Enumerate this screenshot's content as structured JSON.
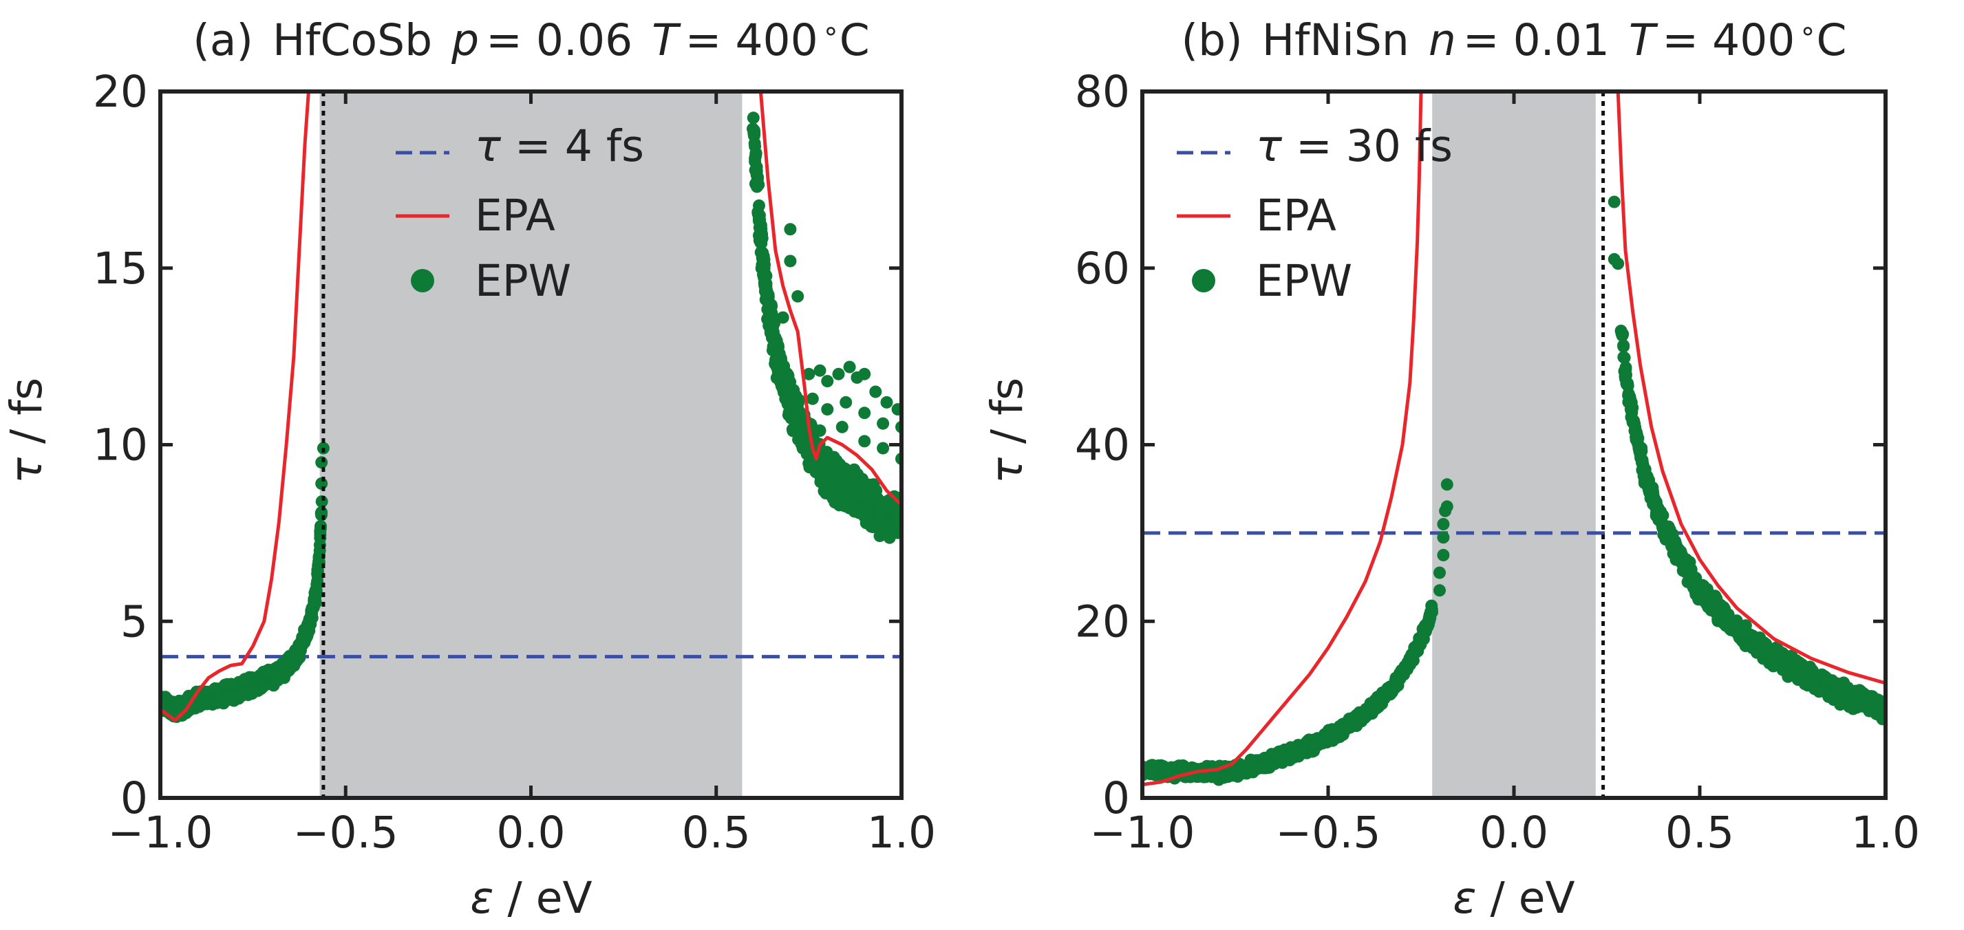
{
  "chart_data": [
    {
      "type": "scatter",
      "title_parts": [
        "(a)",
        "HfCoSb",
        "p",
        "= 0.06",
        "T",
        "= 400",
        "∘",
        "C"
      ],
      "xlabel": {
        "symbol": "ε",
        "unit": " / eV"
      },
      "ylabel": {
        "symbol": "τ",
        "unit": " / fs"
      },
      "xlim": [
        -1.0,
        1.0
      ],
      "ylim": [
        0,
        20
      ],
      "xticks": [
        -1.0,
        -0.5,
        0.0,
        0.5,
        1.0
      ],
      "xtick_labels": [
        "−1.0",
        "−0.5",
        "0.0",
        "0.5",
        "1.0"
      ],
      "yticks": [
        0,
        5,
        10,
        15,
        20
      ],
      "ytick_labels": [
        "0",
        "5",
        "10",
        "15",
        "20"
      ],
      "band_gap": [
        -0.57,
        0.57
      ],
      "fermi_level": -0.56,
      "legend": [
        {
          "kind": "dash",
          "symbol": "τ",
          "text": " = 4 fs",
          "color": "#3a4ea3"
        },
        {
          "kind": "line",
          "text": "EPA",
          "color": "#e8262b"
        },
        {
          "kind": "dot",
          "text": "EPW",
          "color": "#0d7a36"
        }
      ],
      "series": [
        {
          "name": "τ = 4 fs",
          "style": "dashed",
          "color": "#3a4ea3",
          "x": [
            -1.0,
            1.0
          ],
          "y": [
            4,
            4
          ]
        },
        {
          "name": "EPA",
          "style": "line",
          "color": "#e8262b",
          "segments": [
            {
              "x": [
                -1.0,
                -0.96,
                -0.93,
                -0.9,
                -0.87,
                -0.84,
                -0.81,
                -0.78,
                -0.75,
                -0.72,
                -0.7,
                -0.68,
                -0.66,
                -0.64,
                -0.63,
                -0.62,
                -0.61,
                -0.6,
                -0.595
              ],
              "y": [
                2.5,
                2.2,
                2.5,
                3.0,
                3.4,
                3.6,
                3.75,
                3.8,
                4.3,
                5.0,
                6.2,
                7.8,
                10.0,
                12.5,
                14.5,
                16.5,
                18.5,
                20.0,
                20.0
              ]
            },
            {
              "x": [
                0.62,
                0.64,
                0.66,
                0.68,
                0.7,
                0.72,
                0.74,
                0.75,
                0.76,
                0.77,
                0.78,
                0.8,
                0.84,
                0.88,
                0.92,
                0.96,
                1.0
              ],
              "y": [
                20.0,
                17.5,
                15.5,
                14.5,
                13.8,
                13.2,
                11.5,
                10.5,
                9.9,
                9.6,
                10.0,
                10.2,
                10.0,
                9.7,
                9.3,
                8.7,
                8.3
              ]
            }
          ]
        },
        {
          "name": "EPW",
          "style": "scatter",
          "color": "#0d7a36",
          "branches": [
            {
              "x_from": -1.0,
              "x_to": -0.565,
              "y_pts": [
                [
                  -1.0,
                  2.7
                ],
                [
                  -0.95,
                  2.5
                ],
                [
                  -0.9,
                  2.8
                ],
                [
                  -0.85,
                  2.9
                ],
                [
                  -0.8,
                  3.0
                ],
                [
                  -0.75,
                  3.2
                ],
                [
                  -0.7,
                  3.4
                ],
                [
                  -0.66,
                  3.7
                ],
                [
                  -0.63,
                  4.1
                ],
                [
                  -0.6,
                  4.8
                ],
                [
                  -0.58,
                  5.8
                ],
                [
                  -0.57,
                  7.0
                ],
                [
                  -0.565,
                  8.3
                ]
              ],
              "spread": 0.2
            },
            {
              "x_from": 0.6,
              "x_to": 1.0,
              "y_pts": [
                [
                  0.6,
                  19.0
                ],
                [
                  0.61,
                  17.5
                ],
                [
                  0.62,
                  15.8
                ],
                [
                  0.64,
                  14.0
                ],
                [
                  0.66,
                  12.6
                ],
                [
                  0.7,
                  11.2
                ],
                [
                  0.75,
                  10.0
                ],
                [
                  0.8,
                  9.2
                ],
                [
                  0.85,
                  8.8
                ],
                [
                  0.9,
                  8.4
                ],
                [
                  0.95,
                  8.0
                ],
                [
                  1.0,
                  7.8
                ]
              ],
              "spread": 0.5
            }
          ],
          "extra_points": [
            [
              -0.56,
              9.9
            ],
            [
              -0.565,
              9.5
            ],
            [
              -0.565,
              8.9
            ],
            [
              0.7,
              16.1
            ],
            [
              0.7,
              15.2
            ],
            [
              0.72,
              14.2
            ],
            [
              0.68,
              13.6
            ],
            [
              0.75,
              12.0
            ],
            [
              0.78,
              12.1
            ],
            [
              0.8,
              11.8
            ],
            [
              0.83,
              12.0
            ],
            [
              0.86,
              12.2
            ],
            [
              0.88,
              11.9
            ],
            [
              0.9,
              12.0
            ],
            [
              0.93,
              11.5
            ],
            [
              0.96,
              11.2
            ],
            [
              0.99,
              11.0
            ],
            [
              0.76,
              11.3
            ],
            [
              0.8,
              11.0
            ],
            [
              0.85,
              11.2
            ],
            [
              0.9,
              10.9
            ],
            [
              0.95,
              10.6
            ],
            [
              1.0,
              10.5
            ],
            [
              0.78,
              10.4
            ],
            [
              0.84,
              10.5
            ],
            [
              0.9,
              10.1
            ],
            [
              0.95,
              9.9
            ],
            [
              1.0,
              9.6
            ]
          ]
        }
      ]
    },
    {
      "type": "scatter",
      "title_parts": [
        "(b)",
        "HfNiSn",
        "n",
        "= 0.01",
        "T",
        "= 400",
        "∘",
        "C"
      ],
      "xlabel": {
        "symbol": "ε",
        "unit": " / eV"
      },
      "ylabel": {
        "symbol": "τ",
        "unit": " / fs"
      },
      "xlim": [
        -1.0,
        1.0
      ],
      "ylim": [
        0,
        80
      ],
      "xticks": [
        -1.0,
        -0.5,
        0.0,
        0.5,
        1.0
      ],
      "xtick_labels": [
        "−1.0",
        "−0.5",
        "0.0",
        "0.5",
        "1.0"
      ],
      "yticks": [
        0,
        20,
        40,
        60,
        80
      ],
      "ytick_labels": [
        "0",
        "20",
        "40",
        "60",
        "80"
      ],
      "band_gap": [
        -0.22,
        0.22
      ],
      "fermi_level": 0.24,
      "legend": [
        {
          "kind": "dash",
          "symbol": "τ",
          "text": " = 30 fs",
          "color": "#3a4ea3"
        },
        {
          "kind": "line",
          "text": "EPA",
          "color": "#e8262b"
        },
        {
          "kind": "dot",
          "text": "EPW",
          "color": "#0d7a36"
        }
      ],
      "series": [
        {
          "name": "τ = 30 fs",
          "style": "dashed",
          "color": "#3a4ea3",
          "x": [
            -1.0,
            1.0
          ],
          "y": [
            30,
            30
          ]
        },
        {
          "name": "EPA",
          "style": "line",
          "color": "#e8262b",
          "segments": [
            {
              "x": [
                -1.0,
                -0.95,
                -0.9,
                -0.85,
                -0.8,
                -0.76,
                -0.72,
                -0.68,
                -0.64,
                -0.6,
                -0.55,
                -0.5,
                -0.45,
                -0.4,
                -0.36,
                -0.33,
                -0.3,
                -0.28,
                -0.27,
                -0.26,
                -0.255,
                -0.25
              ],
              "y": [
                1.5,
                1.8,
                2.5,
                3.0,
                3.2,
                3.8,
                5.5,
                7.5,
                9.5,
                11.5,
                14.0,
                17.0,
                20.5,
                24.5,
                29.0,
                34.0,
                40.0,
                47.0,
                54.0,
                63.0,
                70.0,
                80.0
              ]
            },
            {
              "x": [
                0.28,
                0.29,
                0.3,
                0.32,
                0.34,
                0.37,
                0.4,
                0.45,
                0.5,
                0.55,
                0.6,
                0.7,
                0.8,
                0.9,
                1.0
              ],
              "y": [
                80.0,
                70.0,
                62.0,
                55.0,
                49.0,
                42.0,
                37.0,
                31.0,
                27.0,
                24.0,
                21.5,
                18.0,
                15.8,
                14.2,
                13.0
              ]
            }
          ]
        },
        {
          "name": "EPW",
          "style": "scatter",
          "color": "#0d7a36",
          "branches": [
            {
              "x_from": -1.0,
              "x_to": -0.22,
              "y_pts": [
                [
                  -1.0,
                  3.2
                ],
                [
                  -0.9,
                  3.0
                ],
                [
                  -0.8,
                  2.8
                ],
                [
                  -0.75,
                  3.0
                ],
                [
                  -0.7,
                  3.6
                ],
                [
                  -0.6,
                  5.0
                ],
                [
                  -0.5,
                  6.8
                ],
                [
                  -0.4,
                  9.5
                ],
                [
                  -0.35,
                  11.5
                ],
                [
                  -0.3,
                  14.0
                ],
                [
                  -0.26,
                  17.0
                ],
                [
                  -0.23,
                  20.0
                ],
                [
                  -0.22,
                  21.5
                ]
              ],
              "spread": 0.6
            },
            {
              "x_from": 0.29,
              "x_to": 1.0,
              "y_pts": [
                [
                  0.29,
                  53.0
                ],
                [
                  0.3,
                  48.0
                ],
                [
                  0.32,
                  43.0
                ],
                [
                  0.35,
                  37.0
                ],
                [
                  0.4,
                  31.0
                ],
                [
                  0.45,
                  27.0
                ],
                [
                  0.5,
                  23.5
                ],
                [
                  0.6,
                  19.0
                ],
                [
                  0.7,
                  16.0
                ],
                [
                  0.8,
                  13.5
                ],
                [
                  0.9,
                  11.5
                ],
                [
                  1.0,
                  10.0
                ]
              ],
              "spread": 1.0
            }
          ],
          "extra_points": [
            [
              -0.2,
              23.5
            ],
            [
              -0.2,
              25.5
            ],
            [
              -0.19,
              27.5
            ],
            [
              -0.19,
              29.5
            ],
            [
              -0.19,
              31.0
            ],
            [
              -0.185,
              32.5
            ],
            [
              -0.18,
              33.0
            ],
            [
              -0.18,
              35.5
            ],
            [
              0.28,
              60.5
            ],
            [
              0.27,
              67.5
            ],
            [
              0.27,
              61.0
            ]
          ]
        }
      ]
    }
  ],
  "colors": {
    "gap": "#c6c7c9",
    "axis": "#222222"
  }
}
